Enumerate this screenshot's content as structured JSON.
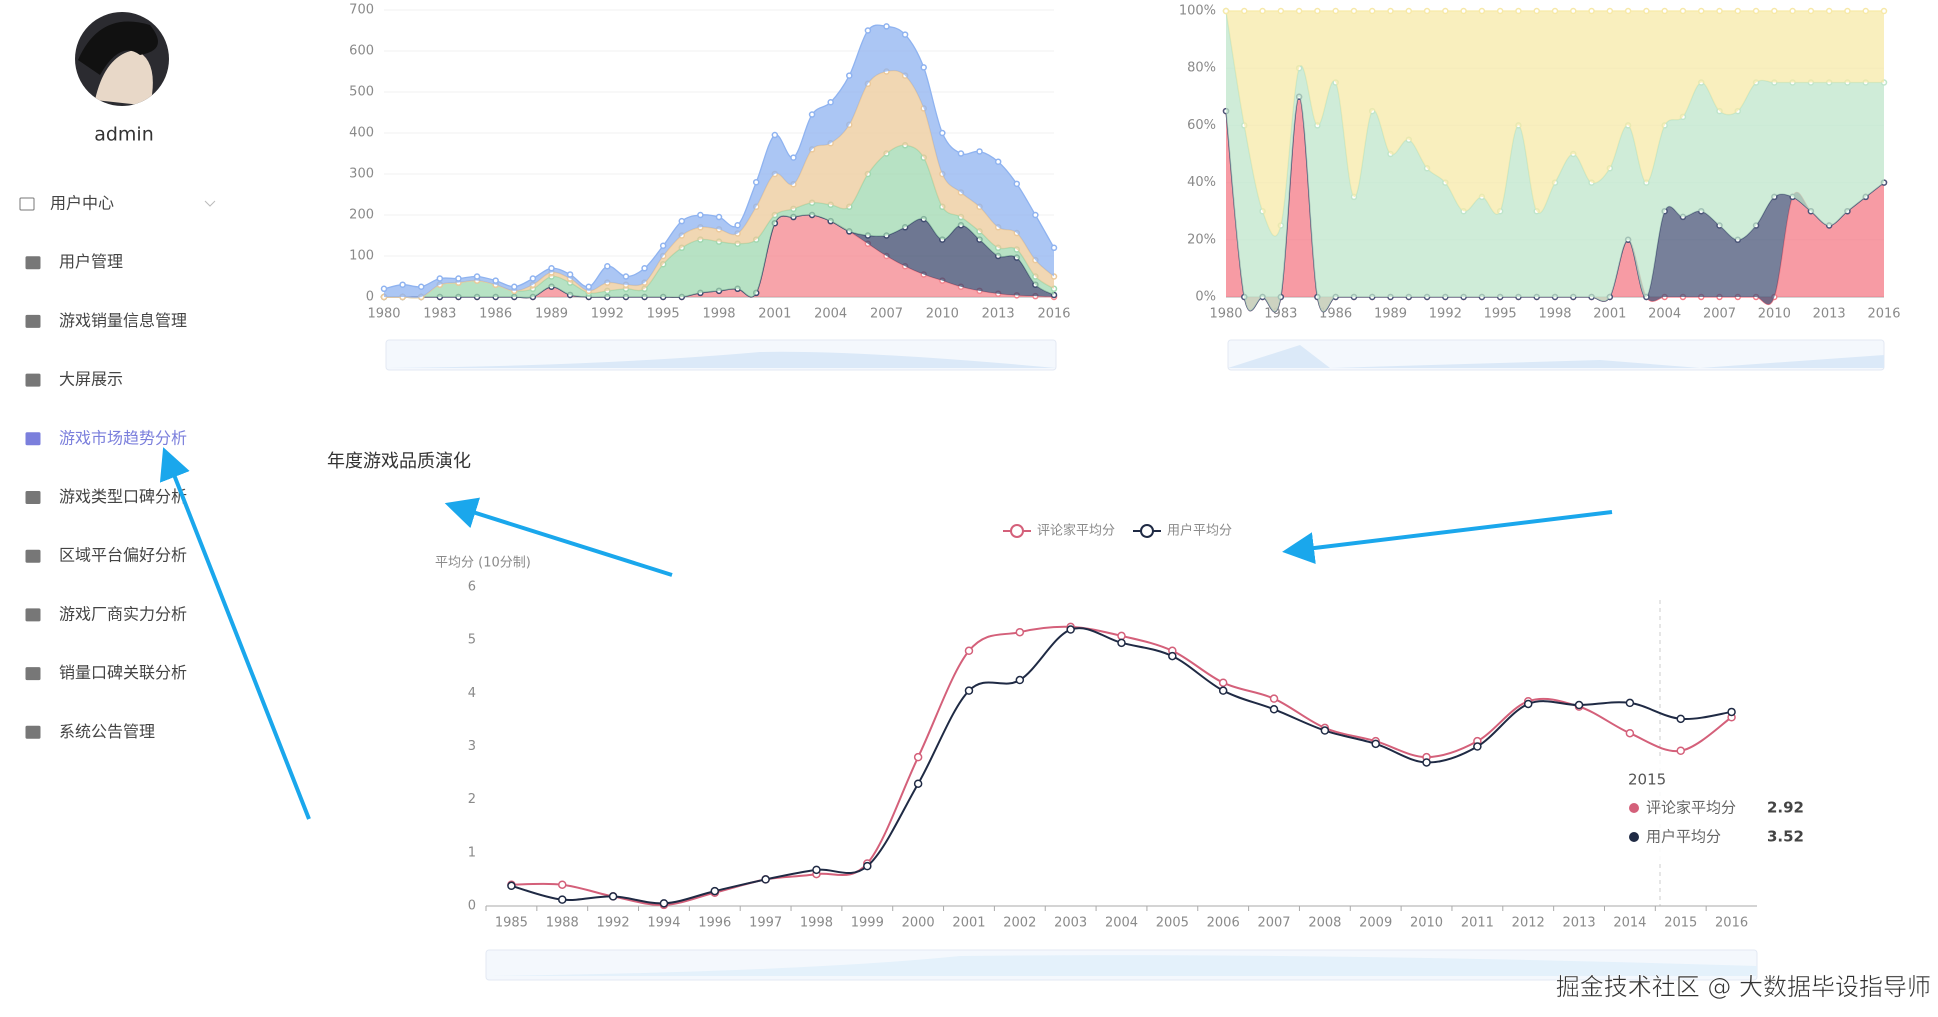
{
  "sidebar": {
    "user": "admin",
    "menu": [
      "用户中心",
      "用户管理",
      "游戏销量信息管理",
      "大屏展示",
      "游戏市场趋势分析",
      "游戏类型口碑分析",
      "区域平台偏好分析",
      "游戏厂商实力分析",
      "销量口碑关联分析",
      "系统公告管理"
    ]
  },
  "watermark": "掘金技术社区 @ 大数据毕设指导师",
  "chart_data": [
    {
      "type": "area",
      "stacked": true,
      "categories": [
        "1980",
        null,
        null,
        "1983",
        null,
        null,
        "1986",
        null,
        null,
        "1989",
        null,
        null,
        "1992",
        null,
        null,
        "1995",
        null,
        null,
        "1998",
        null,
        null,
        "2001",
        null,
        null,
        "2004",
        null,
        null,
        "2007",
        null,
        null,
        "2010",
        null,
        null,
        "2013",
        null,
        null,
        "2016"
      ],
      "ylim": [
        0,
        700
      ],
      "yticks": [
        0,
        100,
        200,
        300,
        400,
        500,
        600,
        700
      ],
      "series": [
        {
          "color": "#f4858e",
          "values": [
            0,
            0,
            0,
            0,
            0,
            0,
            0,
            0,
            0,
            25,
            5,
            0,
            0,
            0,
            0,
            0,
            0,
            10,
            15,
            20,
            10,
            180,
            195,
            200,
            185,
            160,
            130,
            100,
            75,
            55,
            40,
            25,
            15,
            8,
            4,
            2,
            0
          ]
        },
        {
          "color": "#3d4a6e",
          "values": [
            0,
            0,
            0,
            0,
            0,
            0,
            0,
            0,
            0,
            0,
            0,
            0,
            0,
            0,
            0,
            0,
            0,
            0,
            0,
            0,
            0,
            0,
            0,
            0,
            0,
            0,
            20,
            50,
            95,
            135,
            100,
            150,
            125,
            92,
            92,
            28,
            5
          ]
        },
        {
          "color": "#9fd8b0",
          "values": [
            0,
            0,
            0,
            30,
            35,
            40,
            30,
            15,
            20,
            25,
            30,
            10,
            15,
            20,
            20,
            80,
            120,
            130,
            120,
            110,
            130,
            20,
            20,
            30,
            40,
            60,
            150,
            200,
            200,
            150,
            80,
            20,
            20,
            20,
            20,
            20,
            15
          ]
        },
        {
          "color": "#ecc99a",
          "values": [
            0,
            0,
            0,
            0,
            0,
            0,
            0,
            0,
            10,
            10,
            10,
            5,
            20,
            10,
            15,
            20,
            30,
            30,
            30,
            25,
            80,
            100,
            60,
            130,
            150,
            200,
            220,
            200,
            170,
            120,
            80,
            60,
            60,
            50,
            40,
            40,
            30
          ]
        },
        {
          "color": "#8fb3f0",
          "values": [
            20,
            30,
            25,
            15,
            10,
            10,
            10,
            10,
            15,
            10,
            10,
            10,
            40,
            20,
            35,
            25,
            35,
            30,
            30,
            20,
            60,
            95,
            65,
            85,
            100,
            120,
            130,
            110,
            100,
            100,
            100,
            95,
            135,
            160,
            120,
            110,
            70
          ]
        }
      ]
    },
    {
      "type": "area",
      "stacked": true,
      "categories": [
        "1980",
        null,
        null,
        "1983",
        null,
        null,
        "1986",
        null,
        null,
        "1989",
        null,
        null,
        "1992",
        null,
        null,
        "1995",
        null,
        null,
        "1998",
        null,
        null,
        "2001",
        null,
        null,
        "2004",
        null,
        null,
        "2007",
        null,
        null,
        "2010",
        null,
        null,
        "2013",
        null,
        null,
        "2016"
      ],
      "ylim": [
        0,
        100
      ],
      "yticks": [
        {
          "value": 0,
          "label": "0%"
        },
        {
          "value": 20,
          "label": "20%"
        },
        {
          "value": 40,
          "label": "40%"
        },
        {
          "value": 60,
          "label": "60%"
        },
        {
          "value": 80,
          "label": "80%"
        },
        {
          "value": 100,
          "label": "100%"
        }
      ],
      "series": [
        {
          "color": "#f47a86",
          "values": [
            65,
            0,
            0,
            0,
            70,
            0,
            0,
            0,
            0,
            0,
            0,
            0,
            0,
            0,
            0,
            0,
            0,
            0,
            0,
            0,
            0,
            0,
            20,
            0,
            0,
            0,
            0,
            0,
            0,
            0,
            0,
            35,
            30,
            25,
            30,
            35,
            40
          ]
        },
        {
          "color": "#4a5578",
          "values": [
            0,
            0,
            0,
            0,
            0,
            0,
            0,
            0,
            0,
            0,
            0,
            0,
            0,
            0,
            0,
            0,
            0,
            0,
            0,
            0,
            0,
            0,
            0,
            0,
            30,
            28,
            30,
            25,
            20,
            25,
            35,
            0,
            0,
            0,
            0,
            0,
            0
          ]
        },
        {
          "color": "#bfe5cb",
          "values": [
            35,
            60,
            30,
            25,
            10,
            60,
            75,
            35,
            65,
            50,
            55,
            45,
            40,
            30,
            35,
            30,
            60,
            30,
            40,
            50,
            40,
            45,
            40,
            40,
            30,
            35,
            45,
            40,
            45,
            50,
            40,
            40,
            45,
            50,
            45,
            40,
            35
          ]
        },
        {
          "color": "#f7e9a8",
          "values": [
            0,
            40,
            70,
            75,
            20,
            40,
            25,
            65,
            35,
            50,
            45,
            55,
            60,
            70,
            65,
            70,
            40,
            70,
            60,
            50,
            60,
            55,
            40,
            60,
            40,
            37,
            25,
            35,
            35,
            25,
            25,
            25,
            25,
            25,
            25,
            25,
            25
          ]
        }
      ]
    },
    {
      "type": "line",
      "smooth": true,
      "title": "年度游戏品质演化",
      "y_axis_label": "平均分 (10分制)",
      "legend": "top",
      "categories": [
        "1985",
        "1988",
        "1992",
        "1994",
        "1996",
        "1997",
        "1998",
        "1999",
        "2000",
        "2001",
        "2002",
        "2003",
        "2004",
        "2005",
        "2006",
        "2007",
        "2008",
        "2009",
        "2010",
        "2011",
        "2012",
        "2013",
        "2014",
        "2015",
        "2016"
      ],
      "ylim": [
        0,
        6
      ],
      "yticks": [
        0,
        1,
        2,
        3,
        4,
        5,
        6
      ],
      "series": [
        {
          "name": "评论家平均分",
          "color": "#d4607a",
          "values": [
            0.4,
            0.4,
            0.18,
            0.02,
            0.25,
            0.5,
            0.6,
            0.8,
            2.8,
            4.8,
            5.15,
            5.25,
            5.08,
            4.8,
            4.2,
            3.9,
            3.35,
            3.1,
            2.8,
            3.1,
            3.85,
            3.75,
            3.25,
            2.92,
            3.55
          ]
        },
        {
          "name": "用户平均分",
          "color": "#1f2a44",
          "values": [
            0.38,
            0.12,
            0.18,
            0.05,
            0.28,
            0.5,
            0.68,
            0.75,
            2.3,
            4.05,
            4.25,
            5.2,
            4.95,
            4.7,
            4.05,
            3.7,
            3.3,
            3.05,
            2.7,
            3.0,
            3.8,
            3.78,
            3.82,
            3.52,
            3.65
          ]
        }
      ]
    }
  ]
}
